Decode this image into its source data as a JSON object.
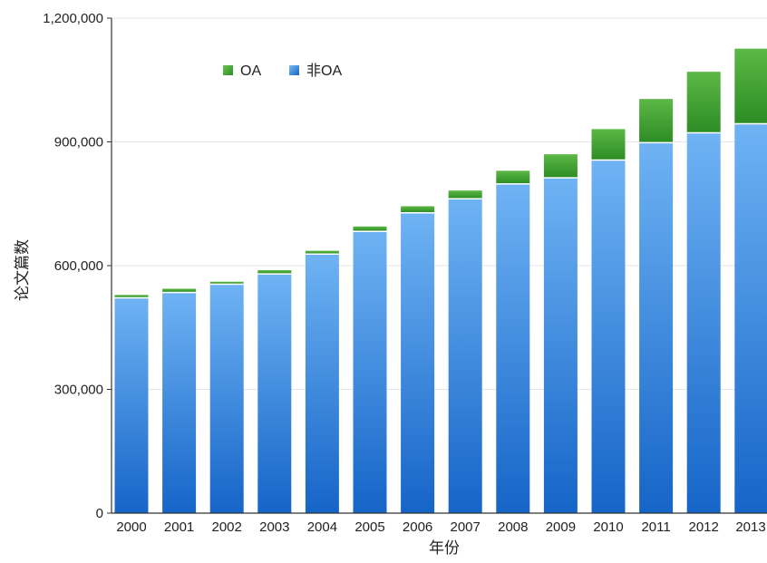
{
  "chart_data": {
    "type": "bar",
    "stacked": true,
    "categories": [
      "2000",
      "2001",
      "2002",
      "2003",
      "2004",
      "2005",
      "2006",
      "2007",
      "2008",
      "2009",
      "2010",
      "2011",
      "2012",
      "2013"
    ],
    "series": [
      {
        "name": "非OA",
        "color": "#2f7fdc",
        "values": [
          522000,
          535000,
          555000,
          580000,
          628000,
          683000,
          728000,
          762000,
          798000,
          813000,
          856000,
          898000,
          922000,
          944000
        ]
      },
      {
        "name": "OA",
        "color": "#3a9a2c",
        "values": [
          7000,
          9000,
          6000,
          9000,
          8000,
          12000,
          16000,
          20000,
          32000,
          57000,
          75000,
          106000,
          148000,
          182000
        ]
      }
    ],
    "legend_order": [
      "OA",
      "非OA"
    ],
    "xlabel": "年份",
    "ylabel": "论文篇数",
    "ylim": [
      0,
      1200000
    ],
    "yticks": [
      0,
      300000,
      600000,
      900000,
      1200000
    ],
    "ytick_labels": [
      "0",
      "300,000",
      "600,000",
      "900,000",
      "1,200,000"
    ],
    "grid": "horizontal",
    "legend_position": "top-left"
  }
}
